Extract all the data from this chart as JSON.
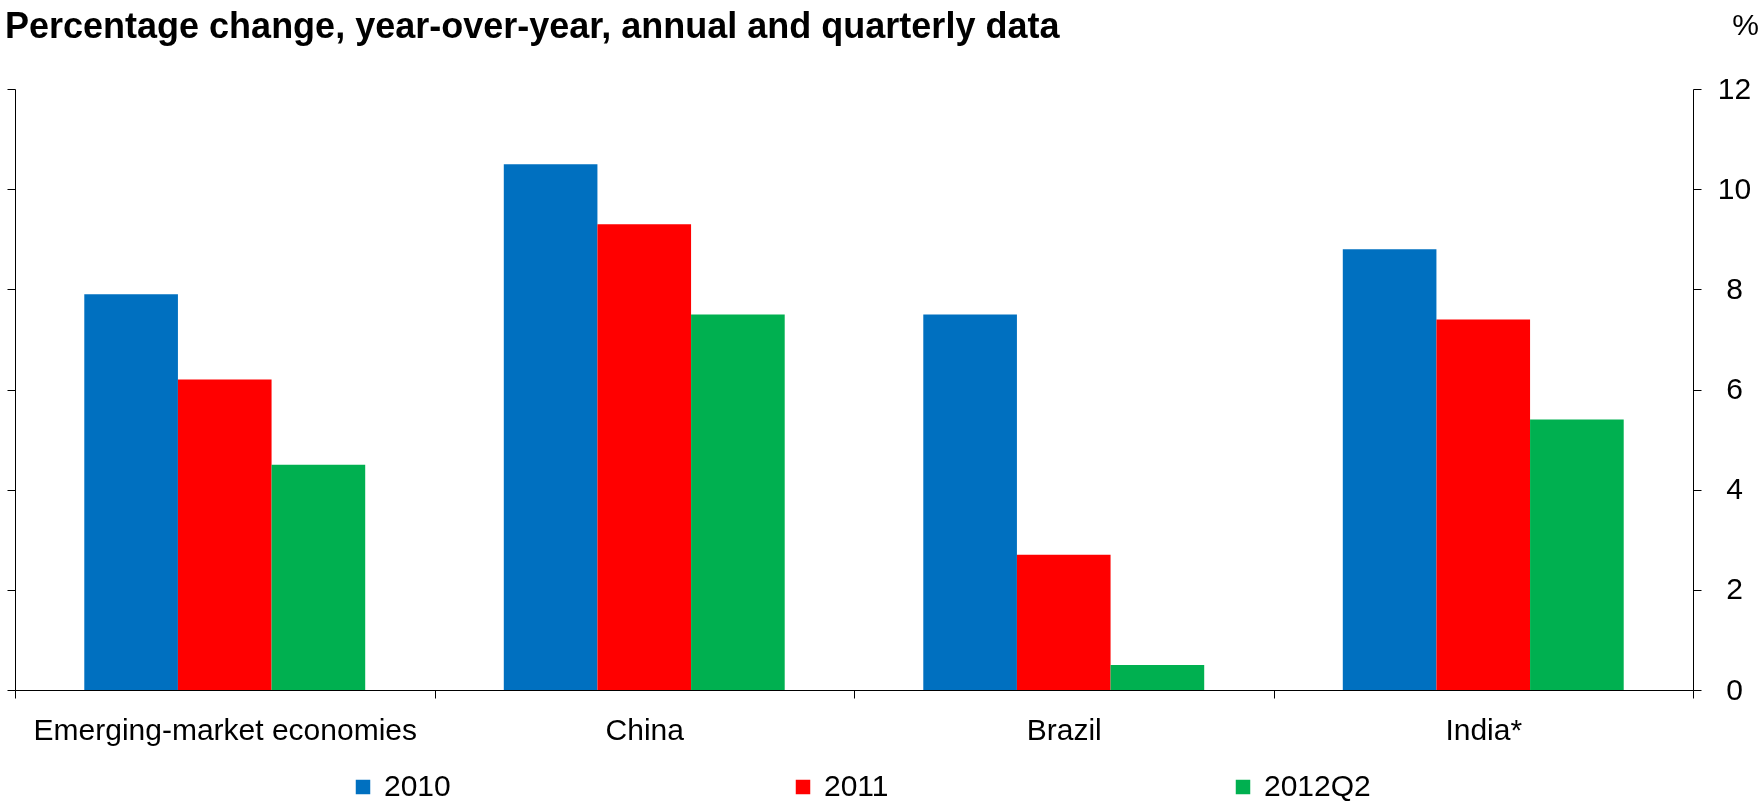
{
  "chart_data": {
    "type": "bar",
    "title": "Percentage change, year-over-year, annual and quarterly data",
    "ylabel": "%",
    "categories": [
      "Emerging-market economies",
      "China",
      "Brazil",
      "India*"
    ],
    "series": [
      {
        "name": "2010",
        "color": "#0070c0",
        "values": [
          7.9,
          10.5,
          7.5,
          8.8
        ]
      },
      {
        "name": "2011",
        "color": "#ff0000",
        "values": [
          6.2,
          9.3,
          2.7,
          7.4
        ]
      },
      {
        "name": "2012Q2",
        "color": "#00b050",
        "values": [
          4.5,
          7.5,
          0.5,
          5.4
        ]
      }
    ],
    "ylim": [
      0,
      12
    ],
    "yticks": [
      0,
      2,
      4,
      6,
      8,
      10,
      12
    ],
    "legend": "bottom"
  }
}
